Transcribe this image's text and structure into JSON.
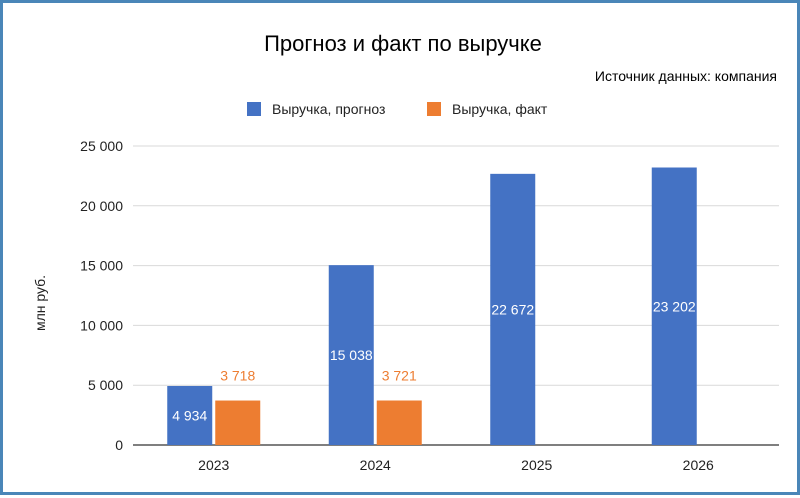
{
  "chart_data": {
    "type": "bar",
    "title": "Прогноз и факт по выручке",
    "subtitle": "Источник данных: компания",
    "xlabel": "",
    "ylabel": "млн руб.",
    "categories": [
      "2023",
      "2024",
      "2025",
      "2026"
    ],
    "ylim": [
      0,
      25000
    ],
    "yticks": [
      0,
      5000,
      10000,
      15000,
      20000,
      25000
    ],
    "ytick_labels": [
      "0",
      "5 000",
      "10 000",
      "15 000",
      "20 000",
      "25 000"
    ],
    "grid": true,
    "legend_position": "top",
    "series": [
      {
        "name": "Выручка, прогноз",
        "color": "#4472c4",
        "values": [
          4934,
          15038,
          22672,
          23202
        ],
        "labels": [
          "4 934",
          "15 038",
          "22 672",
          "23 202"
        ],
        "label_position": "inside-center",
        "label_color": "#ffffff"
      },
      {
        "name": "Выручка, факт",
        "color": "#ed7d31",
        "values": [
          3718,
          3721,
          null,
          null
        ],
        "labels": [
          "3 718",
          "3 721",
          "",
          ""
        ],
        "label_position": "above",
        "label_color": "#ed7d31"
      }
    ]
  }
}
